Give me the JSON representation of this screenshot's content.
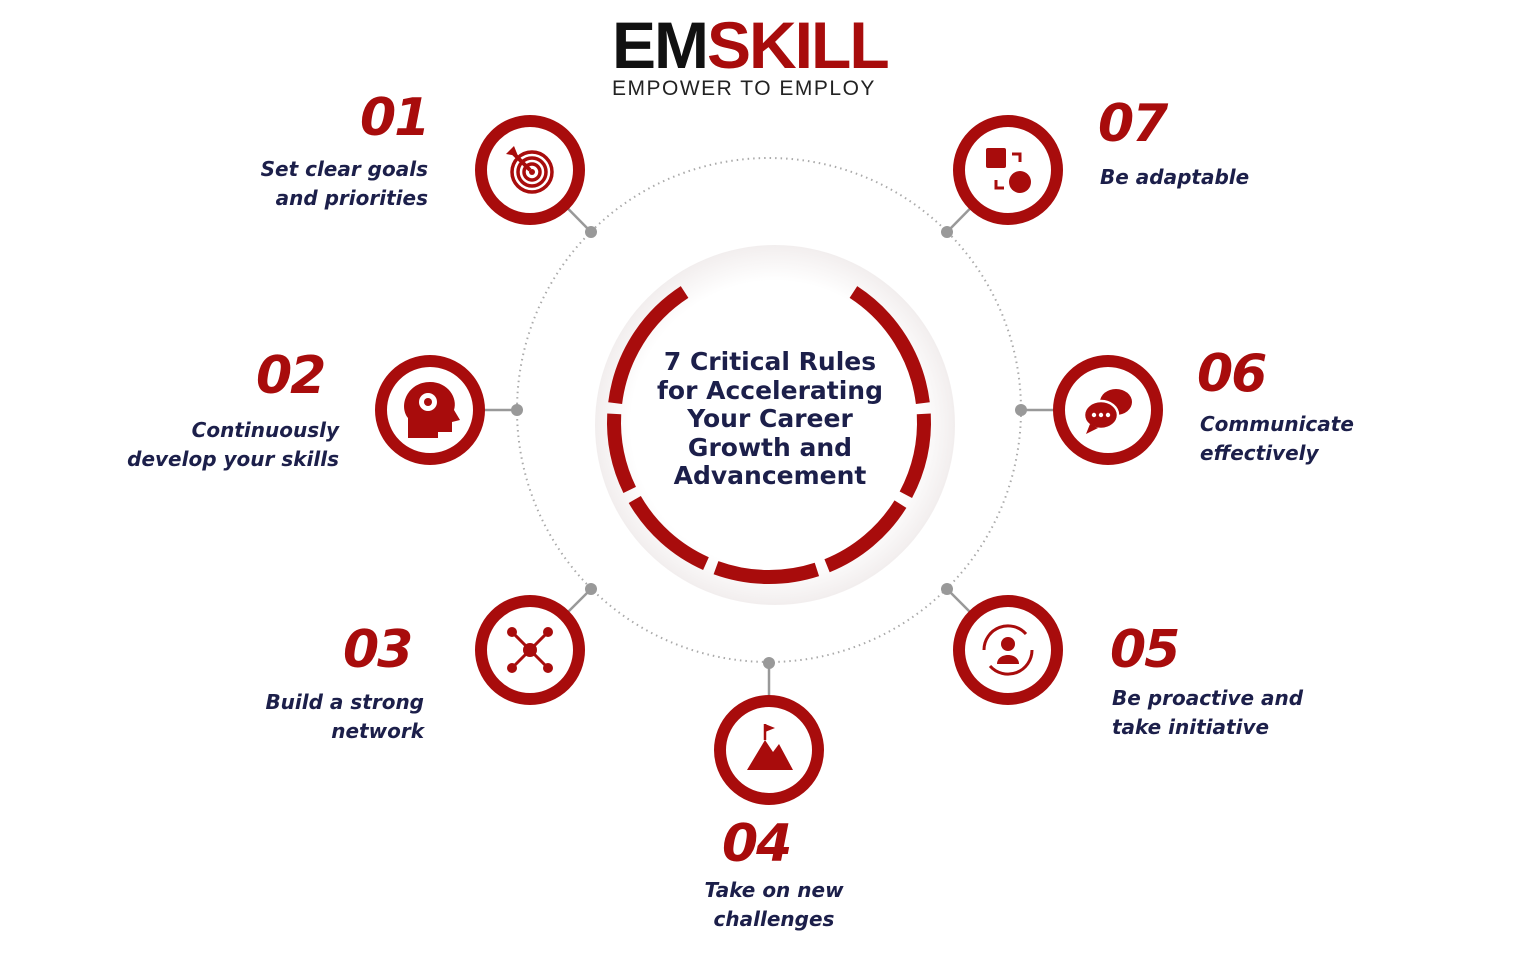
{
  "logo": {
    "em": "EM",
    "skill": "SKILL",
    "tagline": "EMPOWER TO EMPLOY"
  },
  "title": "7 Critical Rules\nfor Accelerating\nYour Career\nGrowth and\nAdvancement",
  "colors": {
    "accent": "#a80c0c",
    "text": "#1c1f4a",
    "connector": "#999999"
  },
  "rules": [
    {
      "number": "01",
      "label": "Set clear goals\nand priorities",
      "icon": "target-icon"
    },
    {
      "number": "02",
      "label": "Continuously\ndevelop your skills",
      "icon": "head-gear-icon"
    },
    {
      "number": "03",
      "label": "Build a strong\nnetwork",
      "icon": "network-icon"
    },
    {
      "number": "04",
      "label": "Take on new\nchallenges",
      "icon": "mountain-flag-icon"
    },
    {
      "number": "05",
      "label": "Be proactive and\ntake initiative",
      "icon": "person-cycle-icon"
    },
    {
      "number": "06",
      "label": "Communicate\neffectively",
      "icon": "chat-bubbles-icon"
    },
    {
      "number": "07",
      "label": "Be adaptable",
      "icon": "shapes-swap-icon"
    }
  ]
}
